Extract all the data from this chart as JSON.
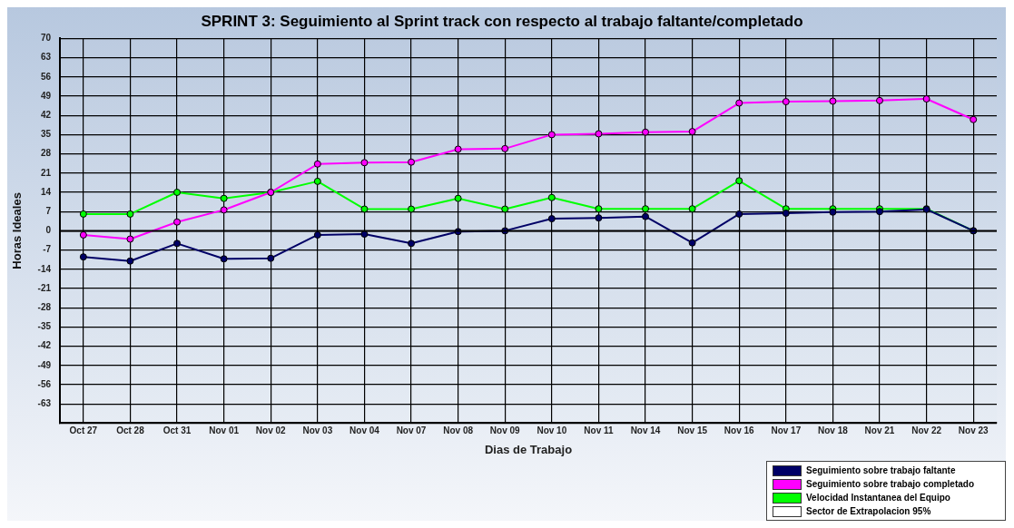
{
  "chart_data": {
    "type": "line",
    "title": "SPRINT 3: Seguimiento al Sprint track con respecto al trabajo faltante/completado",
    "xlabel": "Dias de Trabajo",
    "ylabel": "Horas Ideales",
    "categories": [
      "Oct 27",
      "Oct 28",
      "Oct 31",
      "Nov 01",
      "Nov 02",
      "Nov 03",
      "Nov 04",
      "Nov 07",
      "Nov 08",
      "Nov 09",
      "Nov 10",
      "Nov 11",
      "Nov 14",
      "Nov 15",
      "Nov 16",
      "Nov 17",
      "Nov 18",
      "Nov 21",
      "Nov 22",
      "Nov 23"
    ],
    "series": [
      {
        "name": "Seguimiento sobre trabajo faltante",
        "color": "#000066",
        "values": [
          -9.5,
          -11,
          -4.6,
          -10.2,
          -10,
          -1.5,
          -1.2,
          -4.6,
          -0.3,
          0,
          4.4,
          4.7,
          5.2,
          -4.4,
          6.1,
          6.4,
          6.8,
          7,
          7.8,
          0
        ]
      },
      {
        "name": "Seguimiento sobre trabajo completado",
        "color": "#ff00ff",
        "values": [
          -1.5,
          -3,
          3.2,
          7.6,
          14,
          24.3,
          24.8,
          25,
          29.7,
          29.9,
          35,
          35.3,
          35.9,
          36.1,
          46.5,
          47,
          47.2,
          47.4,
          48,
          40.5
        ]
      },
      {
        "name": "Velocidad Instantanea del Equipo",
        "color": "#00ff00",
        "values": [
          6.1,
          6.1,
          14,
          11.8,
          14,
          18,
          7.9,
          7.9,
          11.8,
          7.9,
          12.1,
          8,
          8,
          8,
          18.2,
          8,
          8,
          8,
          8,
          0
        ]
      },
      {
        "name": "Sector de Extrapolacion 95%",
        "color": "#ffffff",
        "values": [
          null,
          null,
          null,
          null,
          null,
          null,
          null,
          null,
          null,
          null,
          null,
          null,
          null,
          null,
          null,
          null,
          null,
          null,
          null,
          null
        ]
      }
    ],
    "ylim": [
      -70,
      70
    ],
    "yticks": [
      {
        "value": -70,
        "label": null
      },
      -63,
      -56,
      -49,
      -42,
      -35,
      -28,
      -21,
      -14,
      -7,
      0,
      7,
      14,
      21,
      28,
      35,
      42,
      49,
      56,
      63,
      70
    ],
    "ref_lines": [
      {
        "axis": "y",
        "value": 0,
        "color": "#000000"
      }
    ],
    "grid": true,
    "legend": "bottom right",
    "marker": "circle",
    "line_style": "solid"
  }
}
